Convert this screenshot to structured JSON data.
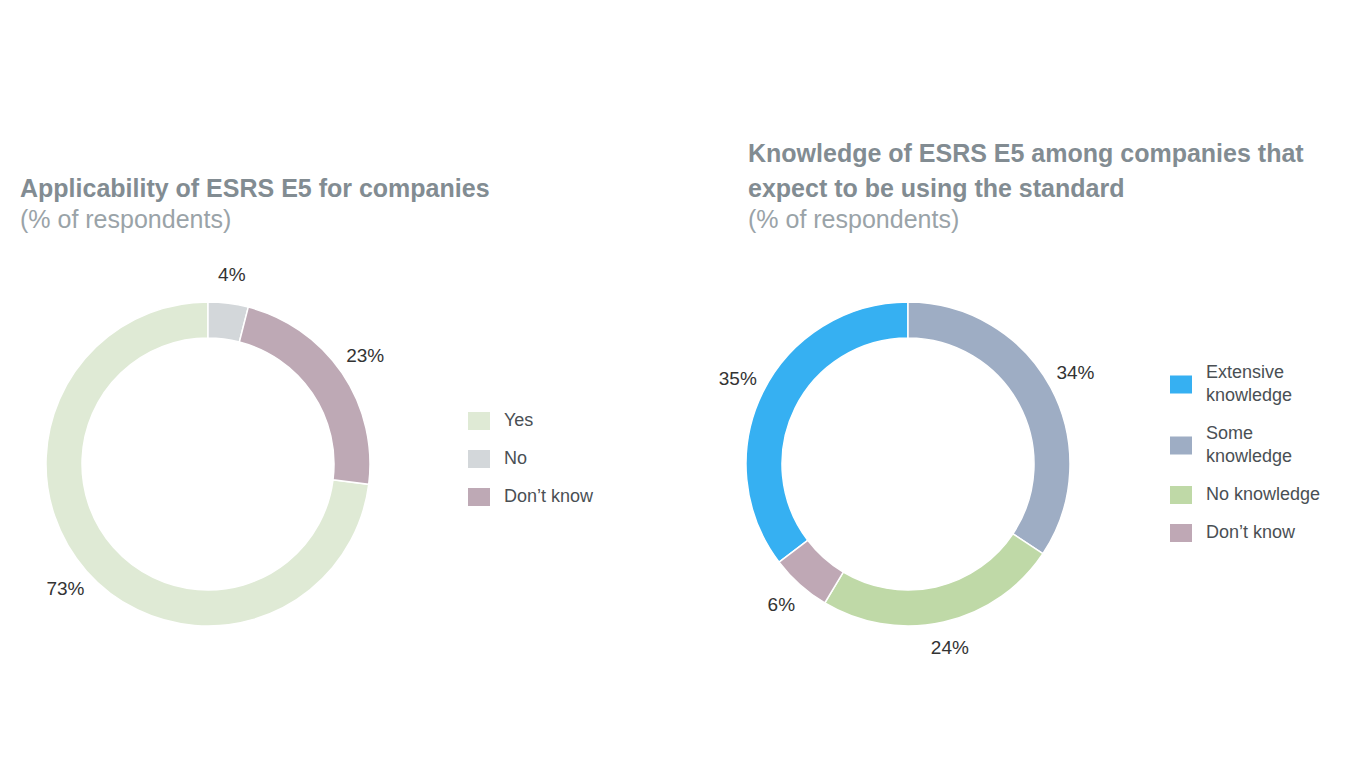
{
  "chart_data": [
    {
      "type": "donut",
      "title": "Applicability of ESRS E5 for companies",
      "subtitle": "(% of respondents)",
      "categories": [
        "Yes",
        "No",
        "Don’t know"
      ],
      "values": [
        73,
        4,
        23
      ],
      "value_labels": [
        "73%",
        "4%",
        "23%"
      ],
      "colors": [
        "#dfead5",
        "#d3d7da",
        "#bea9b5"
      ],
      "data_labels": true,
      "legend": "right"
    },
    {
      "type": "donut",
      "title": "Knowledge of ESRS E5 among companies that expect to be using the standard",
      "subtitle": "(% of respondents)",
      "categories": [
        "Extensive knowledge",
        "Some knowledge",
        "No knowledge",
        "Don’t know"
      ],
      "values": [
        35,
        34,
        24,
        6
      ],
      "value_labels": [
        "35%",
        "34%",
        "24%",
        "6%"
      ],
      "colors": [
        "#36b0f2",
        "#9eadc4",
        "#bfd9a7",
        "#bfa8b5"
      ],
      "data_labels": true,
      "legend": "right"
    }
  ]
}
